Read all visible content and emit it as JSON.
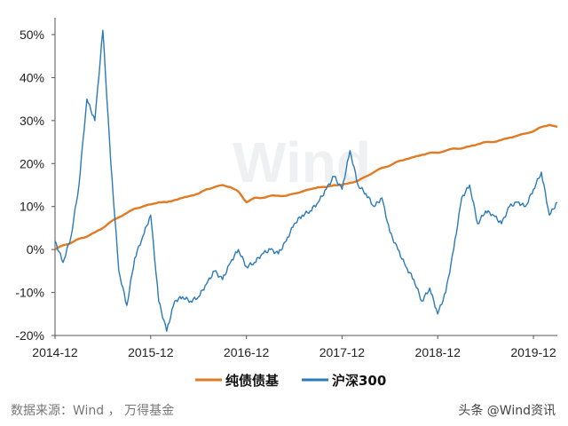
{
  "chart_data": {
    "type": "line",
    "title": "",
    "xlabel": "",
    "ylabel": "",
    "ylim": [
      -20,
      55
    ],
    "x_ticks": [
      "2014-12",
      "2015-12",
      "2016-12",
      "2017-12",
      "2018-12",
      "2019-12"
    ],
    "y_ticks": [
      "50%",
      "40%",
      "30%",
      "20%",
      "10%",
      "0%",
      "-10%",
      "-20%"
    ],
    "y_tick_values": [
      50,
      40,
      30,
      20,
      10,
      0,
      -10,
      -20
    ],
    "grid": false,
    "legend_position": "bottom",
    "watermark": "Wind",
    "series": [
      {
        "name": "纯债债基",
        "color": "#e07b24",
        "points": [
          [
            "2014-12",
            0
          ],
          [
            "2015-01",
            1
          ],
          [
            "2015-02",
            1.5
          ],
          [
            "2015-03",
            2.5
          ],
          [
            "2015-04",
            3
          ],
          [
            "2015-05",
            4
          ],
          [
            "2015-06",
            5
          ],
          [
            "2015-07",
            6.5
          ],
          [
            "2015-08",
            7.5
          ],
          [
            "2015-09",
            8.5
          ],
          [
            "2015-10",
            9.5
          ],
          [
            "2015-11",
            10
          ],
          [
            "2015-12",
            10.5
          ],
          [
            "2016-01",
            11
          ],
          [
            "2016-02",
            11
          ],
          [
            "2016-03",
            11.5
          ],
          [
            "2016-04",
            12
          ],
          [
            "2016-05",
            12.5
          ],
          [
            "2016-06",
            13
          ],
          [
            "2016-07",
            14
          ],
          [
            "2016-08",
            14.5
          ],
          [
            "2016-09",
            15
          ],
          [
            "2016-10",
            14.5
          ],
          [
            "2016-11",
            13.5
          ],
          [
            "2016-12",
            11
          ],
          [
            "2017-01",
            12
          ],
          [
            "2017-02",
            12
          ],
          [
            "2017-03",
            12.5
          ],
          [
            "2017-04",
            12.5
          ],
          [
            "2017-05",
            12.5
          ],
          [
            "2017-06",
            13
          ],
          [
            "2017-07",
            13.5
          ],
          [
            "2017-08",
            14
          ],
          [
            "2017-09",
            14.5
          ],
          [
            "2017-10",
            14.5
          ],
          [
            "2017-11",
            15
          ],
          [
            "2017-12",
            15
          ],
          [
            "2018-01",
            15.5
          ],
          [
            "2018-02",
            16
          ],
          [
            "2018-03",
            17
          ],
          [
            "2018-04",
            18
          ],
          [
            "2018-05",
            19
          ],
          [
            "2018-06",
            19.5
          ],
          [
            "2018-07",
            20.5
          ],
          [
            "2018-08",
            21
          ],
          [
            "2018-09",
            21.5
          ],
          [
            "2018-10",
            22
          ],
          [
            "2018-11",
            22.5
          ],
          [
            "2018-12",
            22.5
          ],
          [
            "2019-01",
            23
          ],
          [
            "2019-02",
            23.5
          ],
          [
            "2019-03",
            23.5
          ],
          [
            "2019-04",
            24
          ],
          [
            "2019-05",
            24.5
          ],
          [
            "2019-06",
            25
          ],
          [
            "2019-07",
            25
          ],
          [
            "2019-08",
            25.5
          ],
          [
            "2019-09",
            26
          ],
          [
            "2019-10",
            26.5
          ],
          [
            "2019-11",
            27
          ],
          [
            "2019-12",
            27.5
          ],
          [
            "2020-01",
            28.5
          ],
          [
            "2020-02",
            29
          ],
          [
            "2020-03",
            28.5
          ]
        ]
      },
      {
        "name": "沪深300",
        "color": "#2a7ab8",
        "points": [
          [
            "2014-12",
            2
          ],
          [
            "2015-01",
            -3
          ],
          [
            "2015-02",
            3
          ],
          [
            "2015-03",
            15
          ],
          [
            "2015-04",
            35
          ],
          [
            "2015-05",
            30
          ],
          [
            "2015-06",
            51
          ],
          [
            "2015-07",
            20
          ],
          [
            "2015-08",
            -5
          ],
          [
            "2015-09",
            -13
          ],
          [
            "2015-10",
            -2
          ],
          [
            "2015-11",
            3
          ],
          [
            "2015-12",
            8
          ],
          [
            "2016-01",
            -12
          ],
          [
            "2016-02",
            -19
          ],
          [
            "2016-03",
            -12
          ],
          [
            "2016-04",
            -11
          ],
          [
            "2016-05",
            -12
          ],
          [
            "2016-06",
            -11
          ],
          [
            "2016-07",
            -8
          ],
          [
            "2016-08",
            -5
          ],
          [
            "2016-09",
            -7
          ],
          [
            "2016-10",
            -3
          ],
          [
            "2016-11",
            0
          ],
          [
            "2016-12",
            -4
          ],
          [
            "2017-01",
            -3
          ],
          [
            "2017-02",
            -1
          ],
          [
            "2017-03",
            0
          ],
          [
            "2017-04",
            -1
          ],
          [
            "2017-05",
            2
          ],
          [
            "2017-06",
            6
          ],
          [
            "2017-07",
            8
          ],
          [
            "2017-08",
            9
          ],
          [
            "2017-09",
            11
          ],
          [
            "2017-10",
            14
          ],
          [
            "2017-11",
            17
          ],
          [
            "2017-12",
            14
          ],
          [
            "2018-01",
            23
          ],
          [
            "2018-02",
            15
          ],
          [
            "2018-03",
            13
          ],
          [
            "2018-04",
            10
          ],
          [
            "2018-05",
            12
          ],
          [
            "2018-06",
            4
          ],
          [
            "2018-07",
            0
          ],
          [
            "2018-08",
            -4
          ],
          [
            "2018-09",
            -7
          ],
          [
            "2018-10",
            -12
          ],
          [
            "2018-11",
            -9
          ],
          [
            "2018-12",
            -15
          ],
          [
            "2019-01",
            -10
          ],
          [
            "2019-02",
            0
          ],
          [
            "2019-03",
            12
          ],
          [
            "2019-04",
            15
          ],
          [
            "2019-05",
            6
          ],
          [
            "2019-06",
            9
          ],
          [
            "2019-07",
            8
          ],
          [
            "2019-08",
            6
          ],
          [
            "2019-09",
            10
          ],
          [
            "2019-10",
            11
          ],
          [
            "2019-11",
            10
          ],
          [
            "2019-12",
            14
          ],
          [
            "2020-01",
            18
          ],
          [
            "2020-02",
            8
          ],
          [
            "2020-03",
            11
          ]
        ]
      }
    ]
  },
  "footer": {
    "source": "数据来源：Wind ， 万得基金",
    "credit": "头条 @Wind资讯"
  }
}
